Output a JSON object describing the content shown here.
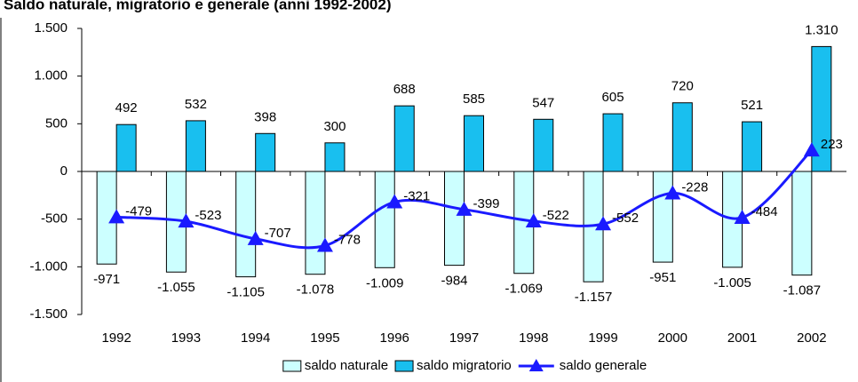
{
  "chart_data": {
    "type": "bar-line",
    "title": "Saldo naturale, migratorio e generale (anni 1992-2002)",
    "categories": [
      "1992",
      "1993",
      "1994",
      "1995",
      "1996",
      "1997",
      "1998",
      "1999",
      "2000",
      "2001",
      "2002"
    ],
    "series": [
      {
        "name": "saldo naturale",
        "type": "bar",
        "color": "#ccffff",
        "values": [
          -971,
          -1055,
          -1105,
          -1078,
          -1009,
          -984,
          -1069,
          -1157,
          -951,
          -1005,
          -1087
        ],
        "value_labels": [
          "-971",
          "-1.055",
          "-1.105",
          "-1.078",
          "-1.009",
          "-984",
          "-1.069",
          "-1.157",
          "-951",
          "-1.005",
          "-1.087"
        ]
      },
      {
        "name": "saldo migratorio",
        "type": "bar",
        "color": "#19bfef",
        "values": [
          492,
          532,
          398,
          300,
          688,
          585,
          547,
          605,
          720,
          521,
          1310
        ],
        "value_labels": [
          "492",
          "532",
          "398",
          "300",
          "688",
          "585",
          "547",
          "605",
          "720",
          "521",
          "1.310"
        ]
      },
      {
        "name": "saldo generale",
        "type": "line",
        "color": "#1a1aff",
        "values": [
          -479,
          -523,
          -707,
          -778,
          -321,
          -399,
          -522,
          -552,
          -228,
          -484,
          223
        ]
      }
    ],
    "ylim": [
      -1500,
      1500
    ],
    "yticks": [
      {
        "value": -1500,
        "label": "-1.500"
      },
      {
        "value": -1000,
        "label": "-1.000"
      },
      -500,
      0,
      500,
      {
        "value": 1000,
        "label": "1.000"
      },
      {
        "value": 1500,
        "label": "1.500"
      }
    ],
    "grid": false,
    "legend": "bottom"
  }
}
